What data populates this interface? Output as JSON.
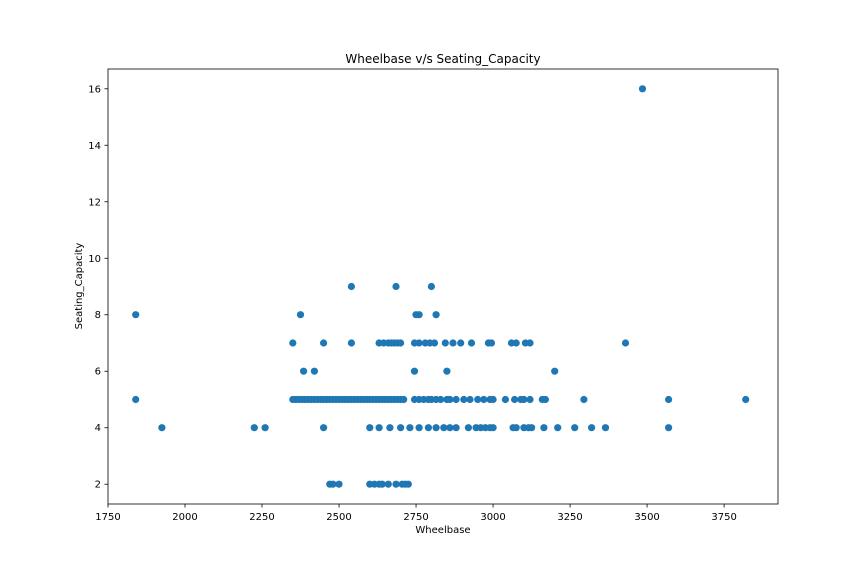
{
  "chart_data": {
    "type": "scatter",
    "title": "Wheelbase v/s Seating_Capacity",
    "xlabel": "Wheelbase",
    "ylabel": "Seating_Capacity",
    "xlim": [
      1750,
      3925
    ],
    "ylim": [
      1.3,
      16.7
    ],
    "xticks": [
      1750,
      2000,
      2250,
      2500,
      2750,
      3000,
      3250,
      3500,
      3750
    ],
    "yticks": [
      2,
      4,
      6,
      8,
      10,
      12,
      14,
      16
    ],
    "grid": false,
    "marker_color": "#1f77b4",
    "series": [
      {
        "name": "Seating_Capacity",
        "points": [
          [
            1840,
            8
          ],
          [
            1840,
            5
          ],
          [
            1925,
            4
          ],
          [
            2225,
            4
          ],
          [
            2260,
            4
          ],
          [
            2350,
            7
          ],
          [
            2375,
            8
          ],
          [
            2385,
            6
          ],
          [
            2420,
            6
          ],
          [
            2450,
            7
          ],
          [
            2450,
            4
          ],
          [
            2540,
            9
          ],
          [
            2540,
            7
          ],
          [
            2685,
            9
          ],
          [
            2800,
            9
          ],
          [
            2815,
            8
          ],
          [
            2750,
            8
          ],
          [
            2760,
            8
          ],
          [
            2350,
            5
          ],
          [
            2360,
            5
          ],
          [
            2370,
            5
          ],
          [
            2380,
            5
          ],
          [
            2390,
            5
          ],
          [
            2400,
            5
          ],
          [
            2410,
            5
          ],
          [
            2420,
            5
          ],
          [
            2430,
            5
          ],
          [
            2440,
            5
          ],
          [
            2450,
            5
          ],
          [
            2460,
            5
          ],
          [
            2470,
            5
          ],
          [
            2480,
            5
          ],
          [
            2490,
            5
          ],
          [
            2500,
            5
          ],
          [
            2510,
            5
          ],
          [
            2520,
            5
          ],
          [
            2530,
            5
          ],
          [
            2540,
            5
          ],
          [
            2550,
            5
          ],
          [
            2560,
            5
          ],
          [
            2570,
            5
          ],
          [
            2580,
            5
          ],
          [
            2590,
            5
          ],
          [
            2600,
            5
          ],
          [
            2610,
            5
          ],
          [
            2620,
            5
          ],
          [
            2630,
            5
          ],
          [
            2640,
            5
          ],
          [
            2650,
            5
          ],
          [
            2660,
            5
          ],
          [
            2670,
            5
          ],
          [
            2680,
            5
          ],
          [
            2690,
            5
          ],
          [
            2700,
            5
          ],
          [
            2710,
            5
          ],
          [
            2745,
            5
          ],
          [
            2760,
            5
          ],
          [
            2775,
            5
          ],
          [
            2790,
            5
          ],
          [
            2800,
            5
          ],
          [
            2815,
            5
          ],
          [
            2830,
            5
          ],
          [
            2850,
            5
          ],
          [
            2860,
            5
          ],
          [
            2880,
            5
          ],
          [
            2905,
            5
          ],
          [
            2925,
            5
          ],
          [
            2950,
            5
          ],
          [
            2970,
            5
          ],
          [
            2990,
            5
          ],
          [
            3000,
            5
          ],
          [
            3040,
            5
          ],
          [
            3070,
            5
          ],
          [
            3090,
            5
          ],
          [
            3100,
            5
          ],
          [
            3120,
            5
          ],
          [
            3160,
            5
          ],
          [
            3170,
            5
          ],
          [
            3295,
            5
          ],
          [
            3570,
            5
          ],
          [
            3820,
            5
          ],
          [
            2630,
            7
          ],
          [
            2645,
            7
          ],
          [
            2660,
            7
          ],
          [
            2670,
            7
          ],
          [
            2680,
            7
          ],
          [
            2690,
            7
          ],
          [
            2700,
            7
          ],
          [
            2745,
            7
          ],
          [
            2760,
            7
          ],
          [
            2780,
            7
          ],
          [
            2795,
            7
          ],
          [
            2810,
            7
          ],
          [
            2845,
            7
          ],
          [
            2870,
            7
          ],
          [
            2895,
            7
          ],
          [
            2930,
            7
          ],
          [
            2985,
            7
          ],
          [
            2995,
            7
          ],
          [
            3060,
            7
          ],
          [
            3075,
            7
          ],
          [
            3105,
            7
          ],
          [
            3120,
            7
          ],
          [
            3430,
            7
          ],
          [
            2745,
            6
          ],
          [
            2850,
            6
          ],
          [
            3200,
            6
          ],
          [
            2600,
            4
          ],
          [
            2630,
            4
          ],
          [
            2665,
            4
          ],
          [
            2700,
            4
          ],
          [
            2730,
            4
          ],
          [
            2760,
            4
          ],
          [
            2790,
            4
          ],
          [
            2815,
            4
          ],
          [
            2840,
            4
          ],
          [
            2860,
            4
          ],
          [
            2880,
            4
          ],
          [
            2920,
            4
          ],
          [
            2945,
            4
          ],
          [
            2960,
            4
          ],
          [
            2975,
            4
          ],
          [
            2990,
            4
          ],
          [
            3000,
            4
          ],
          [
            3065,
            4
          ],
          [
            3075,
            4
          ],
          [
            3100,
            4
          ],
          [
            3115,
            4
          ],
          [
            3125,
            4
          ],
          [
            3165,
            4
          ],
          [
            3210,
            4
          ],
          [
            3265,
            4
          ],
          [
            3320,
            4
          ],
          [
            3365,
            4
          ],
          [
            3570,
            4
          ],
          [
            2470,
            2
          ],
          [
            2480,
            2
          ],
          [
            2500,
            2
          ],
          [
            2600,
            2
          ],
          [
            2615,
            2
          ],
          [
            2630,
            2
          ],
          [
            2640,
            2
          ],
          [
            2660,
            2
          ],
          [
            2685,
            2
          ],
          [
            2705,
            2
          ],
          [
            2715,
            2
          ],
          [
            2725,
            2
          ],
          [
            3485,
            16
          ]
        ]
      }
    ]
  }
}
